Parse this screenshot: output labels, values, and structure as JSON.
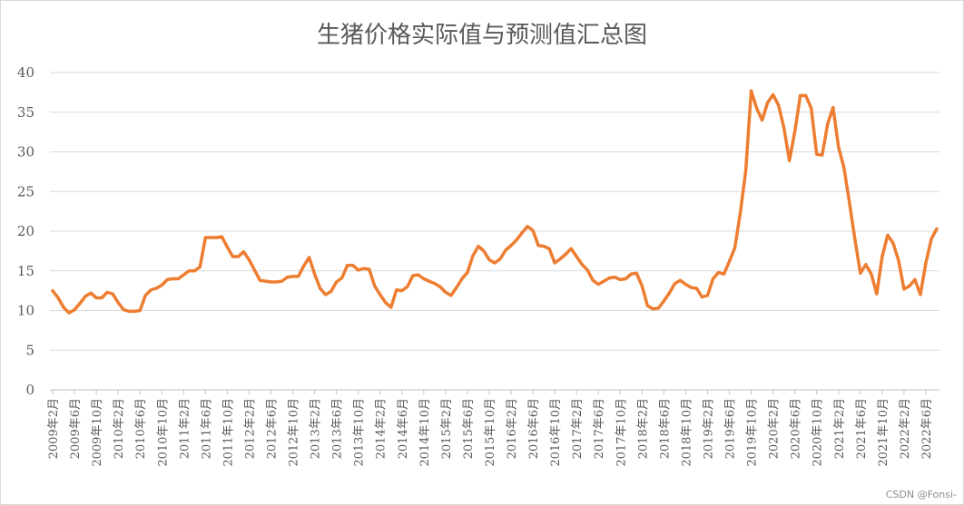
{
  "chart_data": {
    "type": "line",
    "title": "生猪价格实际值与预测值汇总图",
    "xlabel": "",
    "ylabel": "",
    "ylim": [
      0,
      40
    ],
    "yticks": [
      0,
      5,
      10,
      15,
      20,
      25,
      30,
      35,
      40
    ],
    "grid": "horizontal",
    "legend": "none",
    "colors": {
      "line": "#ED7D31",
      "grid": "#d9d9d9",
      "axis": "#bfbfbf",
      "text": "#595959"
    },
    "tick_labels": [
      "2009年2月",
      "2009年6月",
      "2009年10月",
      "2010年2月",
      "2010年6月",
      "2010年10月",
      "2011年2月",
      "2011年6月",
      "2011年10月",
      "2012年2月",
      "2012年6月",
      "2012年10月",
      "2013年2月",
      "2013年6月",
      "2013年10月",
      "2014年2月",
      "2014年6月",
      "2014年10月",
      "2015年2月",
      "2015年6月",
      "2015年10月",
      "2016年2月",
      "2016年6月",
      "2016年10月",
      "2017年2月",
      "2017年6月",
      "2017年10月",
      "2018年2月",
      "2018年6月",
      "2018年10月",
      "2019年2月",
      "2019年6月",
      "2019年10月",
      "2020年2月",
      "2020年6月",
      "2020年10月",
      "2021年2月",
      "2021年6月",
      "2021年10月",
      "2022年2月",
      "2022年6月"
    ],
    "series": [
      {
        "values": [
          12.5,
          11.6,
          10.4,
          9.7,
          10.1,
          10.9,
          11.8,
          12.2,
          11.6,
          11.6,
          12.3,
          12.1,
          11.0,
          10.1,
          9.9,
          9.9,
          10.0,
          11.9,
          12.6,
          12.8,
          13.2,
          13.9,
          14.0,
          14.0,
          14.5,
          15.0,
          15.0,
          15.5,
          19.2,
          19.2,
          19.2,
          19.3,
          18.0,
          16.8,
          16.8,
          17.4,
          16.4,
          15.1,
          13.8,
          13.7,
          13.6,
          13.6,
          13.7,
          14.2,
          14.3,
          14.3,
          15.6,
          16.7,
          14.6,
          12.8,
          12.0,
          12.4,
          13.6,
          14.1,
          15.7,
          15.7,
          15.1,
          15.3,
          15.2,
          13.1,
          12.0,
          11.0,
          10.4,
          12.6,
          12.5,
          13.0,
          14.4,
          14.5,
          14.0,
          13.7,
          13.4,
          13.0,
          12.3,
          11.9,
          12.9,
          14.0,
          14.8,
          16.9,
          18.1,
          17.5,
          16.4,
          16.0,
          16.5,
          17.6,
          18.2,
          18.9,
          19.8,
          20.6,
          20.1,
          18.2,
          18.1,
          17.8,
          16.0,
          16.5,
          17.1,
          17.8,
          16.8,
          15.8,
          15.1,
          13.8,
          13.3,
          13.7,
          14.1,
          14.2,
          13.9,
          14.0,
          14.6,
          14.7,
          13.1,
          10.6,
          10.2,
          10.3,
          11.2,
          12.2,
          13.4,
          13.8,
          13.3,
          12.9,
          12.8,
          11.7,
          11.9,
          14.0,
          14.8,
          14.6,
          16.2,
          17.9,
          22.3,
          27.6,
          37.7,
          35.5,
          34.0,
          36.2,
          37.2,
          35.9,
          33.0,
          28.9,
          32.6,
          37.1,
          37.1,
          35.5,
          29.7,
          29.6,
          33.5,
          35.6,
          30.6,
          28.0,
          23.6,
          19.0,
          14.7,
          15.8,
          14.6,
          12.1,
          16.8,
          19.5,
          18.5,
          16.3,
          12.7,
          13.1,
          13.9,
          12.0,
          16.0,
          19.0,
          20.3
        ]
      }
    ]
  },
  "watermark": "CSDN @Fonsi-"
}
